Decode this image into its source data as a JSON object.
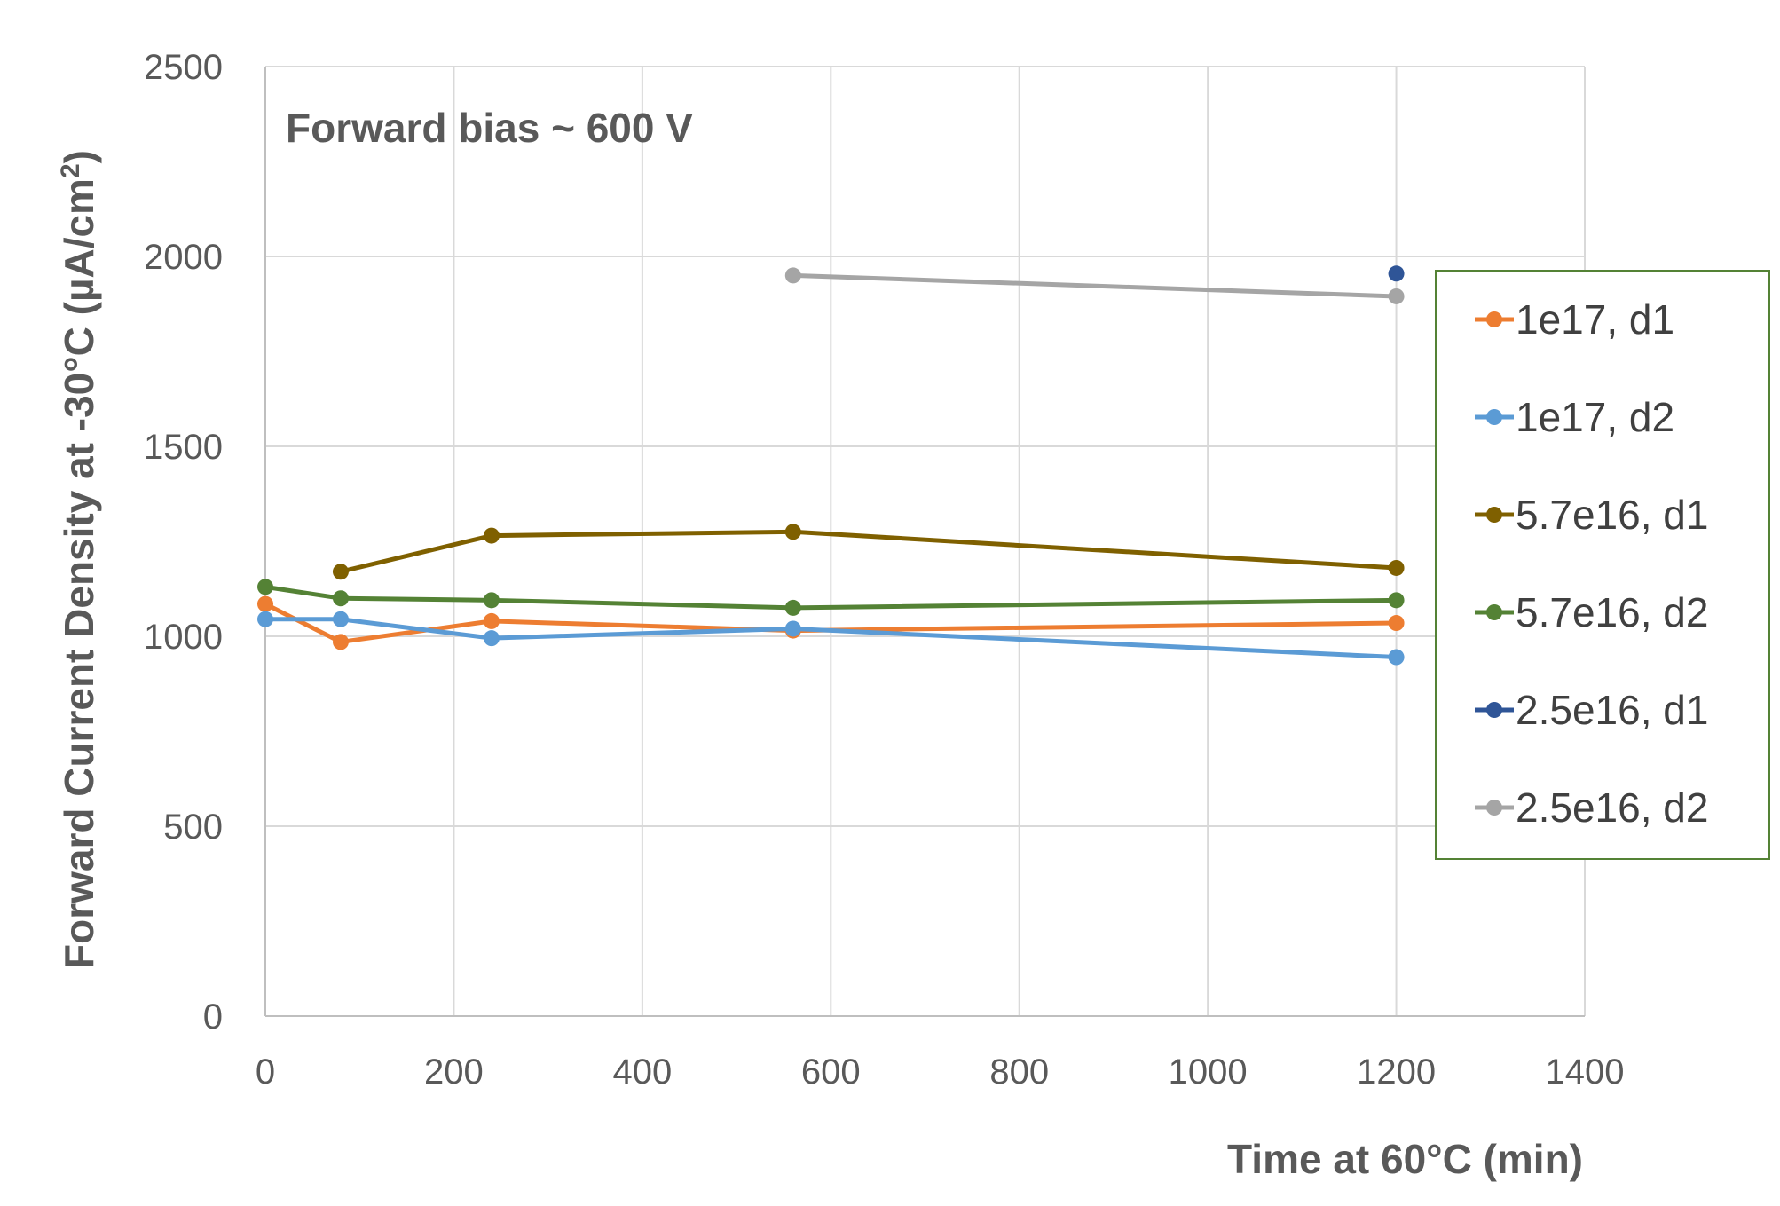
{
  "chart_data": {
    "type": "line",
    "title": "",
    "annotation": "Forward  bias ~ 600 V",
    "xlabel": "Time at 60°C (min)",
    "ylabel": "Forward Current Density at -30°C (µA/cm²)",
    "ylabel_main": "Forward Current Density at -30°C (µA/cm",
    "ylabel_sup": "2",
    "ylabel_end": ")",
    "xlim": [
      0,
      1400
    ],
    "ylim": [
      0,
      2500
    ],
    "xticks": [
      0,
      200,
      400,
      600,
      800,
      1000,
      1200,
      1400
    ],
    "yticks": [
      0,
      500,
      1000,
      1500,
      2000,
      2500
    ],
    "grid": true,
    "legend_position": "right",
    "series": [
      {
        "name": "1e17, d1",
        "color": "#ED7D31",
        "x": [
          0,
          80,
          240,
          560,
          1200
        ],
        "y": [
          1085,
          985,
          1040,
          1015,
          1035
        ]
      },
      {
        "name": "1e17, d2",
        "color": "#5B9BD5",
        "x": [
          0,
          80,
          240,
          560,
          1200
        ],
        "y": [
          1045,
          1045,
          995,
          1020,
          945
        ]
      },
      {
        "name": "5.7e16, d1",
        "color": "#7F6000",
        "x": [
          80,
          240,
          560,
          1200
        ],
        "y": [
          1170,
          1265,
          1275,
          1180
        ]
      },
      {
        "name": "5.7e16, d2",
        "color": "#548235",
        "x": [
          0,
          80,
          240,
          560,
          1200
        ],
        "y": [
          1130,
          1100,
          1095,
          1075,
          1095
        ]
      },
      {
        "name": "2.5e16, d1",
        "color": "#2F5597",
        "x": [
          1200
        ],
        "y": [
          1955
        ]
      },
      {
        "name": "2.5e16, d2",
        "color": "#A5A5A5",
        "x": [
          560,
          1200
        ],
        "y": [
          1950,
          1895
        ]
      }
    ],
    "colors": {
      "grid": "#D9D9D9",
      "axis": "#BFBFBF",
      "legend_border": "#548235"
    }
  }
}
